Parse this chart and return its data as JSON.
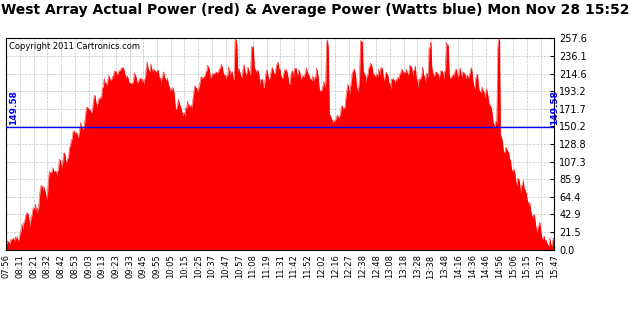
{
  "title": "West Array Actual Power (red) & Average Power (Watts blue) Mon Nov 28 15:52",
  "copyright": "Copyright 2011 Cartronics.com",
  "avg_power": 149.58,
  "avg_label": "149.58",
  "yticks": [
    0.0,
    21.5,
    42.9,
    64.4,
    85.9,
    107.3,
    128.8,
    150.2,
    171.7,
    193.2,
    214.6,
    236.1,
    257.6
  ],
  "ymin": 0.0,
  "ymax": 257.6,
  "fill_color": "red",
  "avg_line_color": "blue",
  "background_color": "white",
  "grid_color": "#bbbbbb",
  "title_fontsize": 10,
  "xtick_labels": [
    "07:56",
    "08:11",
    "08:21",
    "08:32",
    "08:42",
    "08:53",
    "09:03",
    "09:13",
    "09:23",
    "09:33",
    "09:45",
    "09:55",
    "10:05",
    "10:15",
    "10:25",
    "10:37",
    "10:47",
    "10:57",
    "11:08",
    "11:19",
    "11:31",
    "11:42",
    "11:52",
    "12:02",
    "12:16",
    "12:27",
    "12:38",
    "12:48",
    "13:08",
    "13:18",
    "13:28",
    "13:38",
    "13:48",
    "14:16",
    "14:36",
    "14:46",
    "14:56",
    "15:06",
    "15:15",
    "15:37",
    "15:47"
  ]
}
